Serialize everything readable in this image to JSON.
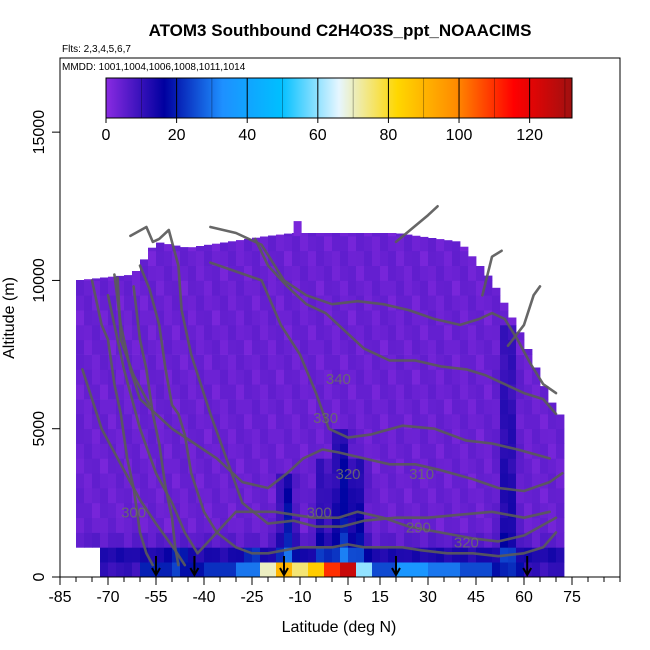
{
  "chart_data": {
    "type": "heatmap",
    "title": "ATOM3 Southbound C2H4O3S_ppt_NOAACIMS",
    "flights_text": "Flts: 2,3,4,5,6,7",
    "dates_text": "MMDD: 1001,1004,1006,1008,1011,1014",
    "xlabel": "Latitude (deg N)",
    "ylabel": "Altitude (m)",
    "xlim": [
      -85,
      90
    ],
    "ylim": [
      0,
      17500
    ],
    "x_ticks": [
      -85,
      -70,
      -55,
      -40,
      -25,
      -10,
      5,
      15,
      30,
      45,
      60,
      75
    ],
    "y_ticks": [
      0,
      5000,
      10000,
      15000
    ],
    "colorbar": {
      "range": [
        0,
        132
      ],
      "ticks": [
        0,
        20,
        40,
        60,
        80,
        100,
        120
      ],
      "colors": [
        "#8a2be2",
        "#0000a0",
        "#1e90ff",
        "#00bfff",
        "#e6f6ff",
        "#ffd700",
        "#ff8c00",
        "#ff0000",
        "#a01010"
      ]
    },
    "background_value": 2,
    "high_columns": [
      {
        "lat": -48,
        "value": 18,
        "top": 800
      },
      {
        "lat": -25,
        "value": 18,
        "top": 1000
      },
      {
        "lat": -14,
        "value": 20,
        "top": 3500
      },
      {
        "lat": -3,
        "value": 12,
        "top": 4000
      },
      {
        "lat": 3,
        "value": 20,
        "top": 5000
      },
      {
        "lat": 8,
        "value": 16,
        "top": 4200
      },
      {
        "lat": 55,
        "value": 14,
        "top": 8500
      }
    ],
    "surface_values": [
      {
        "lat": -55,
        "value": 20
      },
      {
        "lat": -45,
        "value": 18
      },
      {
        "lat": -35,
        "value": 22
      },
      {
        "lat": -25,
        "value": 30
      },
      {
        "lat": -20,
        "value": 70
      },
      {
        "lat": -15,
        "value": 90
      },
      {
        "lat": -10,
        "value": 75
      },
      {
        "lat": -5,
        "value": 85
      },
      {
        "lat": 0,
        "value": 110
      },
      {
        "lat": 5,
        "value": 125
      },
      {
        "lat": 10,
        "value": 60
      },
      {
        "lat": 15,
        "value": 25
      },
      {
        "lat": 25,
        "value": 35
      },
      {
        "lat": 35,
        "value": 30
      },
      {
        "lat": 45,
        "value": 25
      },
      {
        "lat": 55,
        "value": 18
      }
    ],
    "contour_labels": [
      "340",
      "330",
      "320",
      "310",
      "300",
      "290",
      "300",
      "320"
    ],
    "flight_markers_lat": [
      -55,
      -43,
      -15,
      20,
      61
    ]
  }
}
